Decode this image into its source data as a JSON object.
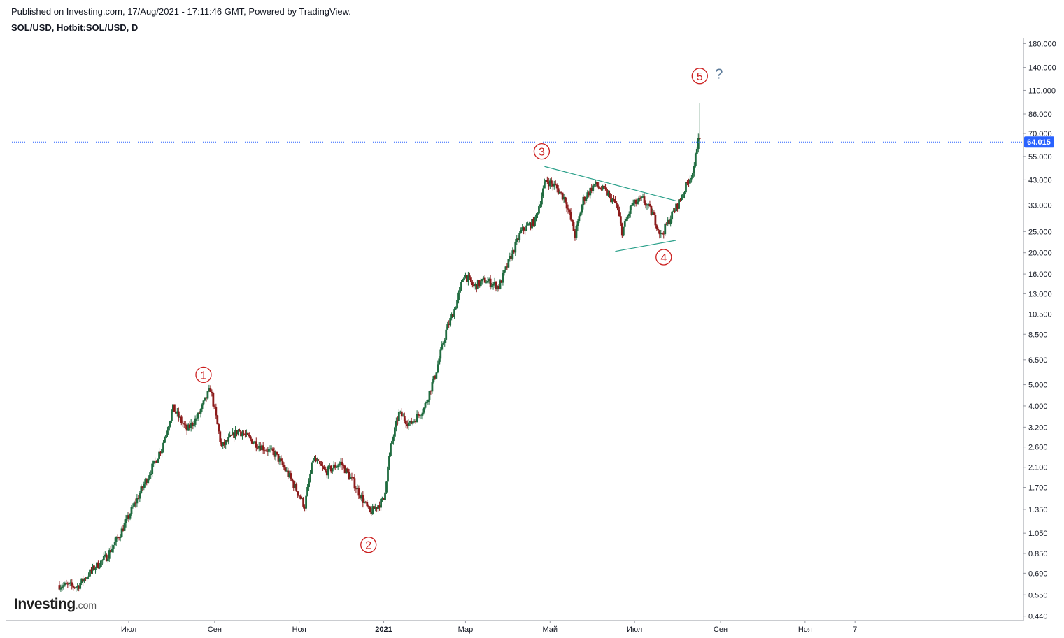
{
  "header": {
    "published": "Published on Investing.com, 17/Aug/2021 - 17:11:46 GMT, Powered by TradingView.",
    "symbol": "SOL/USD, Hotbit:SOL/USD, D"
  },
  "logo": {
    "main": "Investing",
    "suffix": ".com"
  },
  "colors": {
    "up_candle": "#1f6b3f",
    "down_candle": "#8b1a1a",
    "wave_label": "#cc1f1f",
    "trendline": "#2aa08a",
    "price_tag": "#2962ff",
    "question": "#5b7a99"
  },
  "chart_data": {
    "type": "candlestick",
    "scale": "log",
    "ylim": [
      0.42,
      190
    ],
    "price_ticks": [
      "180.000",
      "140.000",
      "110.000",
      "86.000",
      "70.000",
      "55.000",
      "43.000",
      "33.000",
      "25.000",
      "20.000",
      "16.000",
      "13.000",
      "10.500",
      "8.500",
      "6.500",
      "5.000",
      "4.000",
      "3.200",
      "2.600",
      "2.100",
      "1.700",
      "1.350",
      "1.050",
      "0.850",
      "0.690",
      "0.550",
      "0.440"
    ],
    "time_ticks": [
      {
        "label": "Июл",
        "date": "2020-07-01",
        "bold": false
      },
      {
        "label": "Сен",
        "date": "2020-09-01",
        "bold": false
      },
      {
        "label": "Ноя",
        "date": "2020-11-01",
        "bold": false
      },
      {
        "label": "2021",
        "date": "2021-01-01",
        "bold": true
      },
      {
        "label": "Мар",
        "date": "2021-03-01",
        "bold": false
      },
      {
        "label": "Май",
        "date": "2021-05-01",
        "bold": false
      },
      {
        "label": "Июл",
        "date": "2021-07-01",
        "bold": false
      },
      {
        "label": "Сен",
        "date": "2021-09-01",
        "bold": false
      },
      {
        "label": "Ноя",
        "date": "2021-11-01",
        "bold": false
      },
      {
        "label": "7",
        "date": "2021-12-07",
        "bold": false
      }
    ],
    "last_price": "64.015",
    "price_path": [
      [
        "2020-05-11",
        0.61
      ],
      [
        "2020-05-25",
        0.6
      ],
      [
        "2020-06-05",
        0.72
      ],
      [
        "2020-06-15",
        0.82
      ],
      [
        "2020-06-25",
        1.05
      ],
      [
        "2020-07-10",
        1.65
      ],
      [
        "2020-07-25",
        2.6
      ],
      [
        "2020-08-02",
        3.9
      ],
      [
        "2020-08-12",
        3.1
      ],
      [
        "2020-08-20",
        3.6
      ],
      [
        "2020-08-29",
        4.8
      ],
      [
        "2020-09-06",
        2.6
      ],
      [
        "2020-09-18",
        3.1
      ],
      [
        "2020-10-01",
        2.7
      ],
      [
        "2020-10-15",
        2.4
      ],
      [
        "2020-10-25",
        1.9
      ],
      [
        "2020-11-05",
        1.4
      ],
      [
        "2020-11-11",
        2.3
      ],
      [
        "2020-11-20",
        2.0
      ],
      [
        "2020-12-01",
        2.2
      ],
      [
        "2020-12-10",
        1.8
      ],
      [
        "2020-12-22",
        1.3
      ],
      [
        "2021-01-01",
        1.5
      ],
      [
        "2021-01-06",
        2.6
      ],
      [
        "2021-01-12",
        3.7
      ],
      [
        "2021-01-20",
        3.3
      ],
      [
        "2021-01-30",
        3.9
      ],
      [
        "2021-02-07",
        5.5
      ],
      [
        "2021-02-15",
        8.8
      ],
      [
        "2021-02-22",
        11.5
      ],
      [
        "2021-02-28",
        16
      ],
      [
        "2021-03-07",
        14
      ],
      [
        "2021-03-15",
        15
      ],
      [
        "2021-03-25",
        14
      ],
      [
        "2021-04-01",
        18
      ],
      [
        "2021-04-10",
        25
      ],
      [
        "2021-04-20",
        28
      ],
      [
        "2021-04-28",
        43
      ],
      [
        "2021-05-05",
        40
      ],
      [
        "2021-05-12",
        35
      ],
      [
        "2021-05-19",
        24
      ],
      [
        "2021-05-25",
        35
      ],
      [
        "2021-06-02",
        41
      ],
      [
        "2021-06-10",
        38
      ],
      [
        "2021-06-18",
        33
      ],
      [
        "2021-06-22",
        25
      ],
      [
        "2021-06-29",
        33
      ],
      [
        "2021-07-07",
        35
      ],
      [
        "2021-07-14",
        30
      ],
      [
        "2021-07-20",
        24
      ],
      [
        "2021-07-27",
        29
      ],
      [
        "2021-08-03",
        35
      ],
      [
        "2021-08-09",
        43
      ],
      [
        "2021-08-13",
        48
      ],
      [
        "2021-08-16",
        70
      ],
      [
        "2021-08-17",
        64
      ]
    ],
    "annotations": {
      "waves": [
        {
          "label": "1",
          "date": "2020-08-24",
          "price": 5.55
        },
        {
          "label": "2",
          "date": "2020-12-21",
          "price": 0.93
        },
        {
          "label": "3",
          "date": "2021-04-25",
          "price": 58
        },
        {
          "label": "4",
          "date": "2021-07-22",
          "price": 19.1
        },
        {
          "label": "5",
          "date": "2021-08-17",
          "price": 128
        }
      ],
      "question": {
        "text": "?",
        "date": "2021-08-20",
        "price": 130
      },
      "trendlines": [
        {
          "from": [
            "2021-04-27",
            49.5
          ],
          "to": [
            "2021-07-31",
            34.5
          ]
        },
        {
          "from": [
            "2021-06-17",
            20.3
          ],
          "to": [
            "2021-07-31",
            22.8
          ]
        }
      ]
    }
  }
}
